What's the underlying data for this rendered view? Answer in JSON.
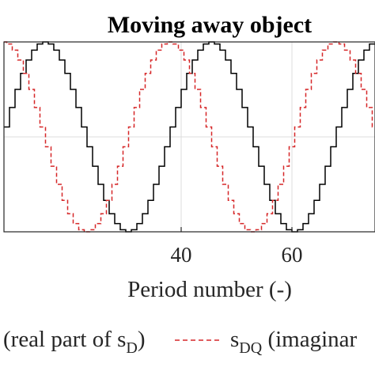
{
  "chart_data": {
    "type": "line",
    "title": "Moving away object",
    "xlabel": "Period number (-)",
    "ylabel": "",
    "xlim": [
      8,
      75
    ],
    "ylim": [
      -1,
      1
    ],
    "x_ticks": [
      40,
      60
    ],
    "x_tick_labels": [
      "40",
      "60"
    ],
    "grid": true,
    "step": true,
    "series": [
      {
        "name": "(real part of s_D)",
        "color": "#000000",
        "dash": "solid",
        "period": 30,
        "phase_peak_x": 15.5,
        "amplitude": 1.0,
        "steps_per_period": 30
      },
      {
        "name": "s_DQ (imaginar",
        "color": "#d62728",
        "dash": "dashed",
        "period": 30,
        "phase_peak_x": 8,
        "amplitude": 1.0,
        "steps_per_period": 30
      }
    ],
    "legend": {
      "placement": "bottom",
      "entries": [
        {
          "prefix": "(real part of s",
          "sub": "D",
          "suffix": ")"
        },
        {
          "prefix": "s",
          "sub": "DQ",
          "suffix": " (imaginar"
        }
      ]
    }
  }
}
